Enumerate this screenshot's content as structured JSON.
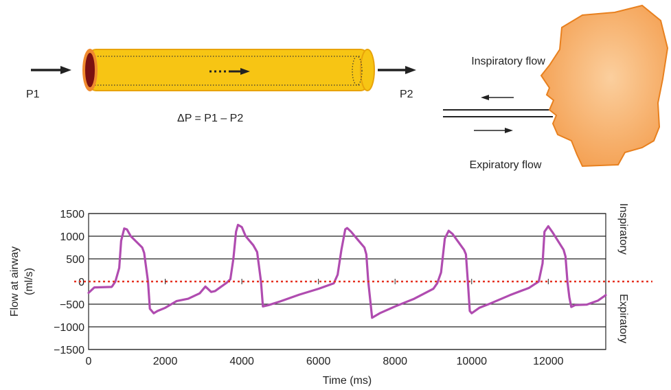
{
  "diagram": {
    "p1_label": "P1",
    "p2_label": "P2",
    "equation": "ΔP = P1 – P2",
    "inspiratory_flow_label": "Inspiratory flow",
    "expiratory_flow_label": "Expiratory flow",
    "colors": {
      "tube": "#F7C514",
      "tube_outline": "#E8A30A",
      "tube_inlet_rim": "#F08A2E",
      "tube_inlet": "#7A1010",
      "head": "#F4A456",
      "head_outline": "#E8801E",
      "arrow": "#222222"
    }
  },
  "chart_data": {
    "type": "line",
    "title": "",
    "xlabel": "Time (ms)",
    "ylabel": "Flow at airway\n(ml/s)",
    "ylabel_lines": [
      "Flow at airway",
      "(ml/s)"
    ],
    "right_label_top": "Inspiratory",
    "right_label_bottom": "Expiratory",
    "xlim": [
      0,
      13500
    ],
    "ylim": [
      -1500,
      1500
    ],
    "x_ticks": [
      0,
      2000,
      4000,
      6000,
      8000,
      10000,
      12000
    ],
    "x_tick_labels": [
      "0",
      "2000",
      "4000",
      "6000",
      "8000",
      "10000",
      "12000"
    ],
    "y_ticks": [
      -1500,
      -1000,
      -500,
      0,
      500,
      1000,
      1500
    ],
    "y_tick_labels": [
      "−1500",
      "−1000",
      "−500",
      "0",
      "500",
      "1000",
      "1500"
    ],
    "grid": "horizontal",
    "zero_line": {
      "style": "dotted",
      "color": "#E53020"
    },
    "series_color": "#B04CB0",
    "series": [
      {
        "x": [
          0,
          150,
          600,
          620,
          700,
          800,
          850,
          930,
          1000,
          1100,
          1400,
          1450,
          1550,
          1600,
          1700,
          1800,
          2000,
          2300,
          2600,
          2900,
          3050,
          3200,
          3300,
          3450,
          3600,
          3700,
          3780,
          3850,
          3900,
          4000,
          4100,
          4300,
          4400,
          4500,
          4550,
          4700,
          5000,
          5500,
          6000,
          6400,
          6500,
          6600,
          6700,
          6750,
          6850,
          7000,
          7200,
          7250,
          7300,
          7400,
          7600,
          8000,
          8500,
          9000,
          9100,
          9200,
          9300,
          9400,
          9500,
          9800,
          9850,
          9900,
          9950,
          10000,
          10200,
          10500,
          11000,
          11500,
          11750,
          11850,
          11900,
          12000,
          12100,
          12400,
          12450,
          12500,
          12550,
          12600,
          12700,
          13000,
          13300,
          13500
        ],
        "y": [
          -250,
          -130,
          -120,
          -100,
          0,
          300,
          900,
          1170,
          1150,
          1000,
          750,
          630,
          0,
          -600,
          -700,
          -650,
          -580,
          -430,
          -380,
          -260,
          -110,
          -230,
          -210,
          -120,
          -30,
          50,
          500,
          1100,
          1250,
          1200,
          1000,
          800,
          650,
          0,
          -550,
          -520,
          -440,
          -290,
          -160,
          -40,
          150,
          700,
          1150,
          1180,
          1100,
          950,
          750,
          600,
          0,
          -800,
          -700,
          -550,
          -380,
          -160,
          -40,
          200,
          950,
          1120,
          1050,
          700,
          600,
          0,
          -650,
          -700,
          -580,
          -480,
          -300,
          -140,
          0,
          400,
          1100,
          1220,
          1100,
          700,
          550,
          0,
          -350,
          -560,
          -520,
          -510,
          -420,
          -300
        ]
      }
    ]
  }
}
